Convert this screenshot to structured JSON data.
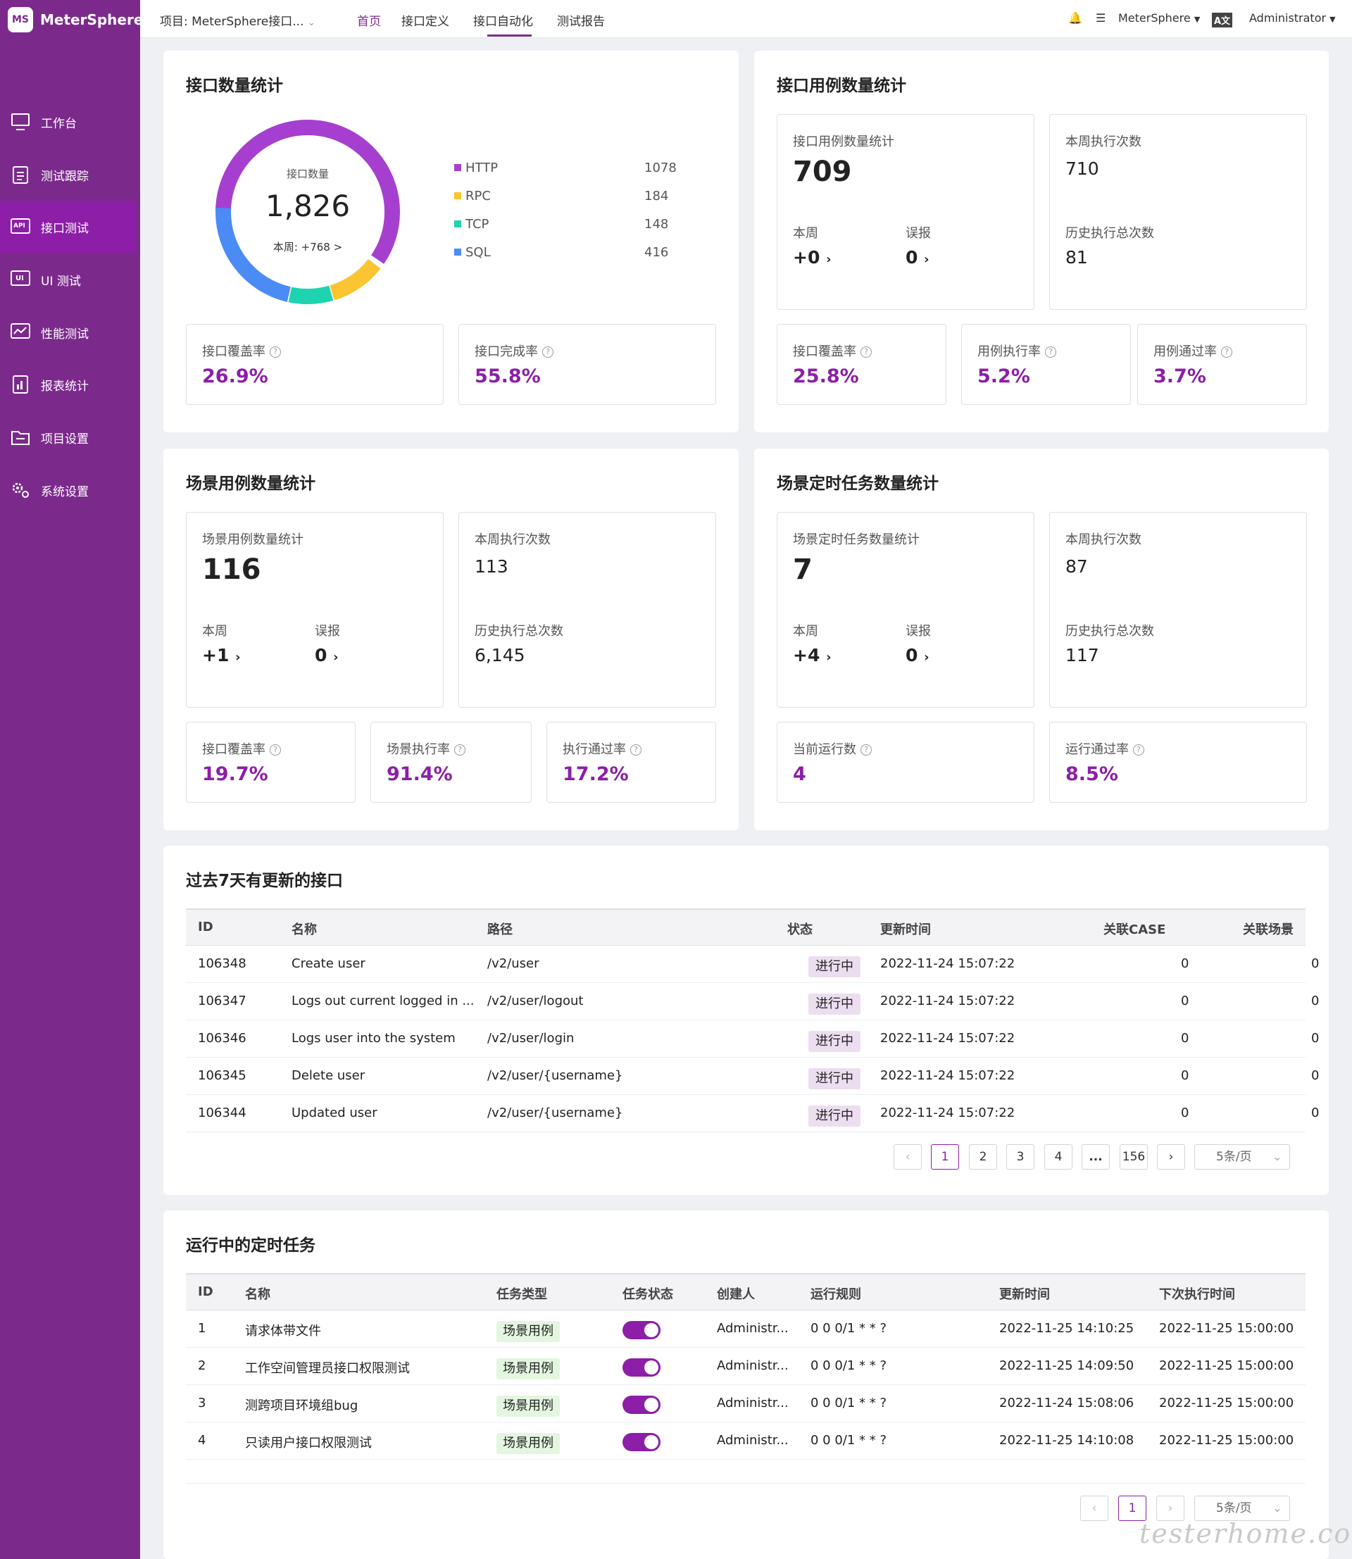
{
  "app": {
    "name": "MeterSphere",
    "logo_text": "MS"
  },
  "sidebar": {
    "items": [
      {
        "label": "工作台",
        "icon": "monitor-icon"
      },
      {
        "label": "测试跟踪",
        "icon": "clipboard-icon"
      },
      {
        "label": "接口测试",
        "icon": "api-icon",
        "active": true
      },
      {
        "label": "UI 测试",
        "icon": "ui-icon"
      },
      {
        "label": "性能测试",
        "icon": "performance-icon"
      },
      {
        "label": "报表统计",
        "icon": "report-icon"
      },
      {
        "label": "项目设置",
        "icon": "folder-icon"
      },
      {
        "label": "系统设置",
        "icon": "gear-icon"
      }
    ]
  },
  "topbar": {
    "project": "项目: MeterSphere接口...",
    "tabs": [
      "首页",
      "接口定义",
      "接口自动化",
      "测试报告"
    ],
    "workspace": "MeterSphere",
    "user": "Administrator"
  },
  "api_count": {
    "title": "接口数量统计",
    "center_label": "接口数量",
    "total": "1,826",
    "week": "本周: +768 >",
    "legend": [
      {
        "name": "HTTP",
        "value": "1078",
        "color": "#a63fcf"
      },
      {
        "name": "RPC",
        "value": "184",
        "color": "#fbc531"
      },
      {
        "name": "TCP",
        "value": "148",
        "color": "#1dd3b0"
      },
      {
        "name": "SQL",
        "value": "416",
        "color": "#4b8bf5"
      }
    ],
    "coverage_label": "接口覆盖率",
    "coverage": "26.9%",
    "completion_label": "接口完成率",
    "completion": "55.8%"
  },
  "api_case": {
    "title": "接口用例数量统计",
    "total_label": "接口用例数量统计",
    "total": "709",
    "week_label": "本周",
    "week": "+0",
    "false_label": "误报",
    "false": "0",
    "week_exec_label": "本周执行次数",
    "week_exec": "710",
    "hist_label": "历史执行总次数",
    "hist": "81",
    "cov_label": "接口覆盖率",
    "cov": "25.8%",
    "exec_label": "用例执行率",
    "exec": "5.2%",
    "pass_label": "用例通过率",
    "pass": "3.7%"
  },
  "scenario": {
    "title": "场景用例数量统计",
    "total_label": "场景用例数量统计",
    "total": "116",
    "week_label": "本周",
    "week": "+1",
    "false_label": "误报",
    "false": "0",
    "week_exec_label": "本周执行次数",
    "week_exec": "113",
    "hist_label": "历史执行总次数",
    "hist": "6,145",
    "cov_label": "接口覆盖率",
    "cov": "19.7%",
    "exec_label": "场景执行率",
    "exec": "91.4%",
    "pass_label": "执行通过率",
    "pass": "17.2%"
  },
  "schedule": {
    "title": "场景定时任务数量统计",
    "total_label": "场景定时任务数量统计",
    "total": "7",
    "week_label": "本周",
    "week": "+4",
    "false_label": "误报",
    "false": "0",
    "week_exec_label": "本周执行次数",
    "week_exec": "87",
    "hist_label": "历史执行总次数",
    "hist": "117",
    "run_label": "当前运行数",
    "run": "4",
    "pass_label": "运行通过率",
    "pass": "8.5%"
  },
  "updated": {
    "title": "过去7天有更新的接口",
    "columns": [
      "ID",
      "名称",
      "路径",
      "状态",
      "更新时间",
      "关联CASE",
      "关联场景"
    ],
    "rows": [
      {
        "id": "106348",
        "name": "Create user",
        "path": "/v2/user",
        "status": "进行中",
        "time": "2022-11-24 15:07:22",
        "case": "0",
        "scene": "0"
      },
      {
        "id": "106347",
        "name": "Logs out current logged in ...",
        "path": "/v2/user/logout",
        "status": "进行中",
        "time": "2022-11-24 15:07:22",
        "case": "0",
        "scene": "0"
      },
      {
        "id": "106346",
        "name": "Logs user into the system",
        "path": "/v2/user/login",
        "status": "进行中",
        "time": "2022-11-24 15:07:22",
        "case": "0",
        "scene": "0"
      },
      {
        "id": "106345",
        "name": "Delete user",
        "path": "/v2/user/{username}",
        "status": "进行中",
        "time": "2022-11-24 15:07:22",
        "case": "0",
        "scene": "0"
      },
      {
        "id": "106344",
        "name": "Updated user",
        "path": "/v2/user/{username}",
        "status": "进行中",
        "time": "2022-11-24 15:07:22",
        "case": "0",
        "scene": "0"
      }
    ],
    "pages": [
      "1",
      "2",
      "3",
      "4",
      "...",
      "156"
    ],
    "page_size": "5条/页"
  },
  "tasks": {
    "title": "运行中的定时任务",
    "columns": [
      "ID",
      "名称",
      "任务类型",
      "任务状态",
      "创建人",
      "运行规则",
      "更新时间",
      "下次执行时间"
    ],
    "rows": [
      {
        "id": "1",
        "name": "请求体带文件",
        "type": "场景用例",
        "creator": "Administr...",
        "rule": "0 0 0/1 * * ?",
        "updated": "2022-11-25 14:10:25",
        "next": "2022-11-25 15:00:00"
      },
      {
        "id": "2",
        "name": "工作空间管理员接口权限测试",
        "type": "场景用例",
        "creator": "Administr...",
        "rule": "0 0 0/1 * * ?",
        "updated": "2022-11-25 14:09:50",
        "next": "2022-11-25 15:00:00"
      },
      {
        "id": "3",
        "name": "测跨项目环境组bug",
        "type": "场景用例",
        "creator": "Administr...",
        "rule": "0 0 0/1 * * ?",
        "updated": "2022-11-24 15:08:06",
        "next": "2022-11-25 15:00:00"
      },
      {
        "id": "4",
        "name": "只读用户接口权限测试",
        "type": "场景用例",
        "creator": "Administr...",
        "rule": "0 0 0/1 * * ?",
        "updated": "2022-11-25 14:10:08",
        "next": "2022-11-25 15:00:00"
      }
    ],
    "page": "1",
    "page_size": "5条/页"
  },
  "watermark": "testerhome.com"
}
